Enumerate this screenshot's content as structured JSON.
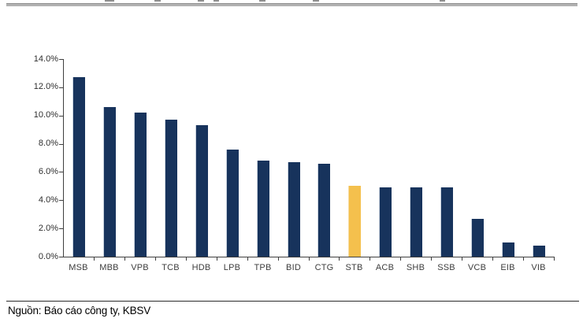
{
  "page": {
    "source_note": "Nguồn: Báo cáo công ty, KBSV"
  },
  "chart_data": {
    "type": "bar",
    "title": "",
    "categories": [
      "MSB",
      "MBB",
      "VPB",
      "TCB",
      "HDB",
      "LPB",
      "TPB",
      "BID",
      "CTG",
      "STB",
      "ACB",
      "SHB",
      "SSB",
      "VCB",
      "EIB",
      "VIB"
    ],
    "values": [
      12.7,
      10.6,
      10.2,
      9.7,
      9.3,
      7.6,
      6.8,
      6.7,
      6.6,
      5.0,
      4.9,
      4.9,
      4.9,
      2.7,
      1.0,
      0.8
    ],
    "unit": "%",
    "ylabel": "",
    "xlabel": "",
    "ylim": [
      0,
      14
    ],
    "y_tick_step": 2,
    "y_tick_labels": [
      "0.0%",
      "2.0%",
      "4.0%",
      "6.0%",
      "8.0%",
      "10.0%",
      "12.0%",
      "14.0%"
    ],
    "grid": false,
    "legend": "none",
    "bar_color": "#17335C",
    "highlight_color": "#F4C04D",
    "highlighted_category": "STB",
    "axis_color": "#3f3f3f"
  }
}
